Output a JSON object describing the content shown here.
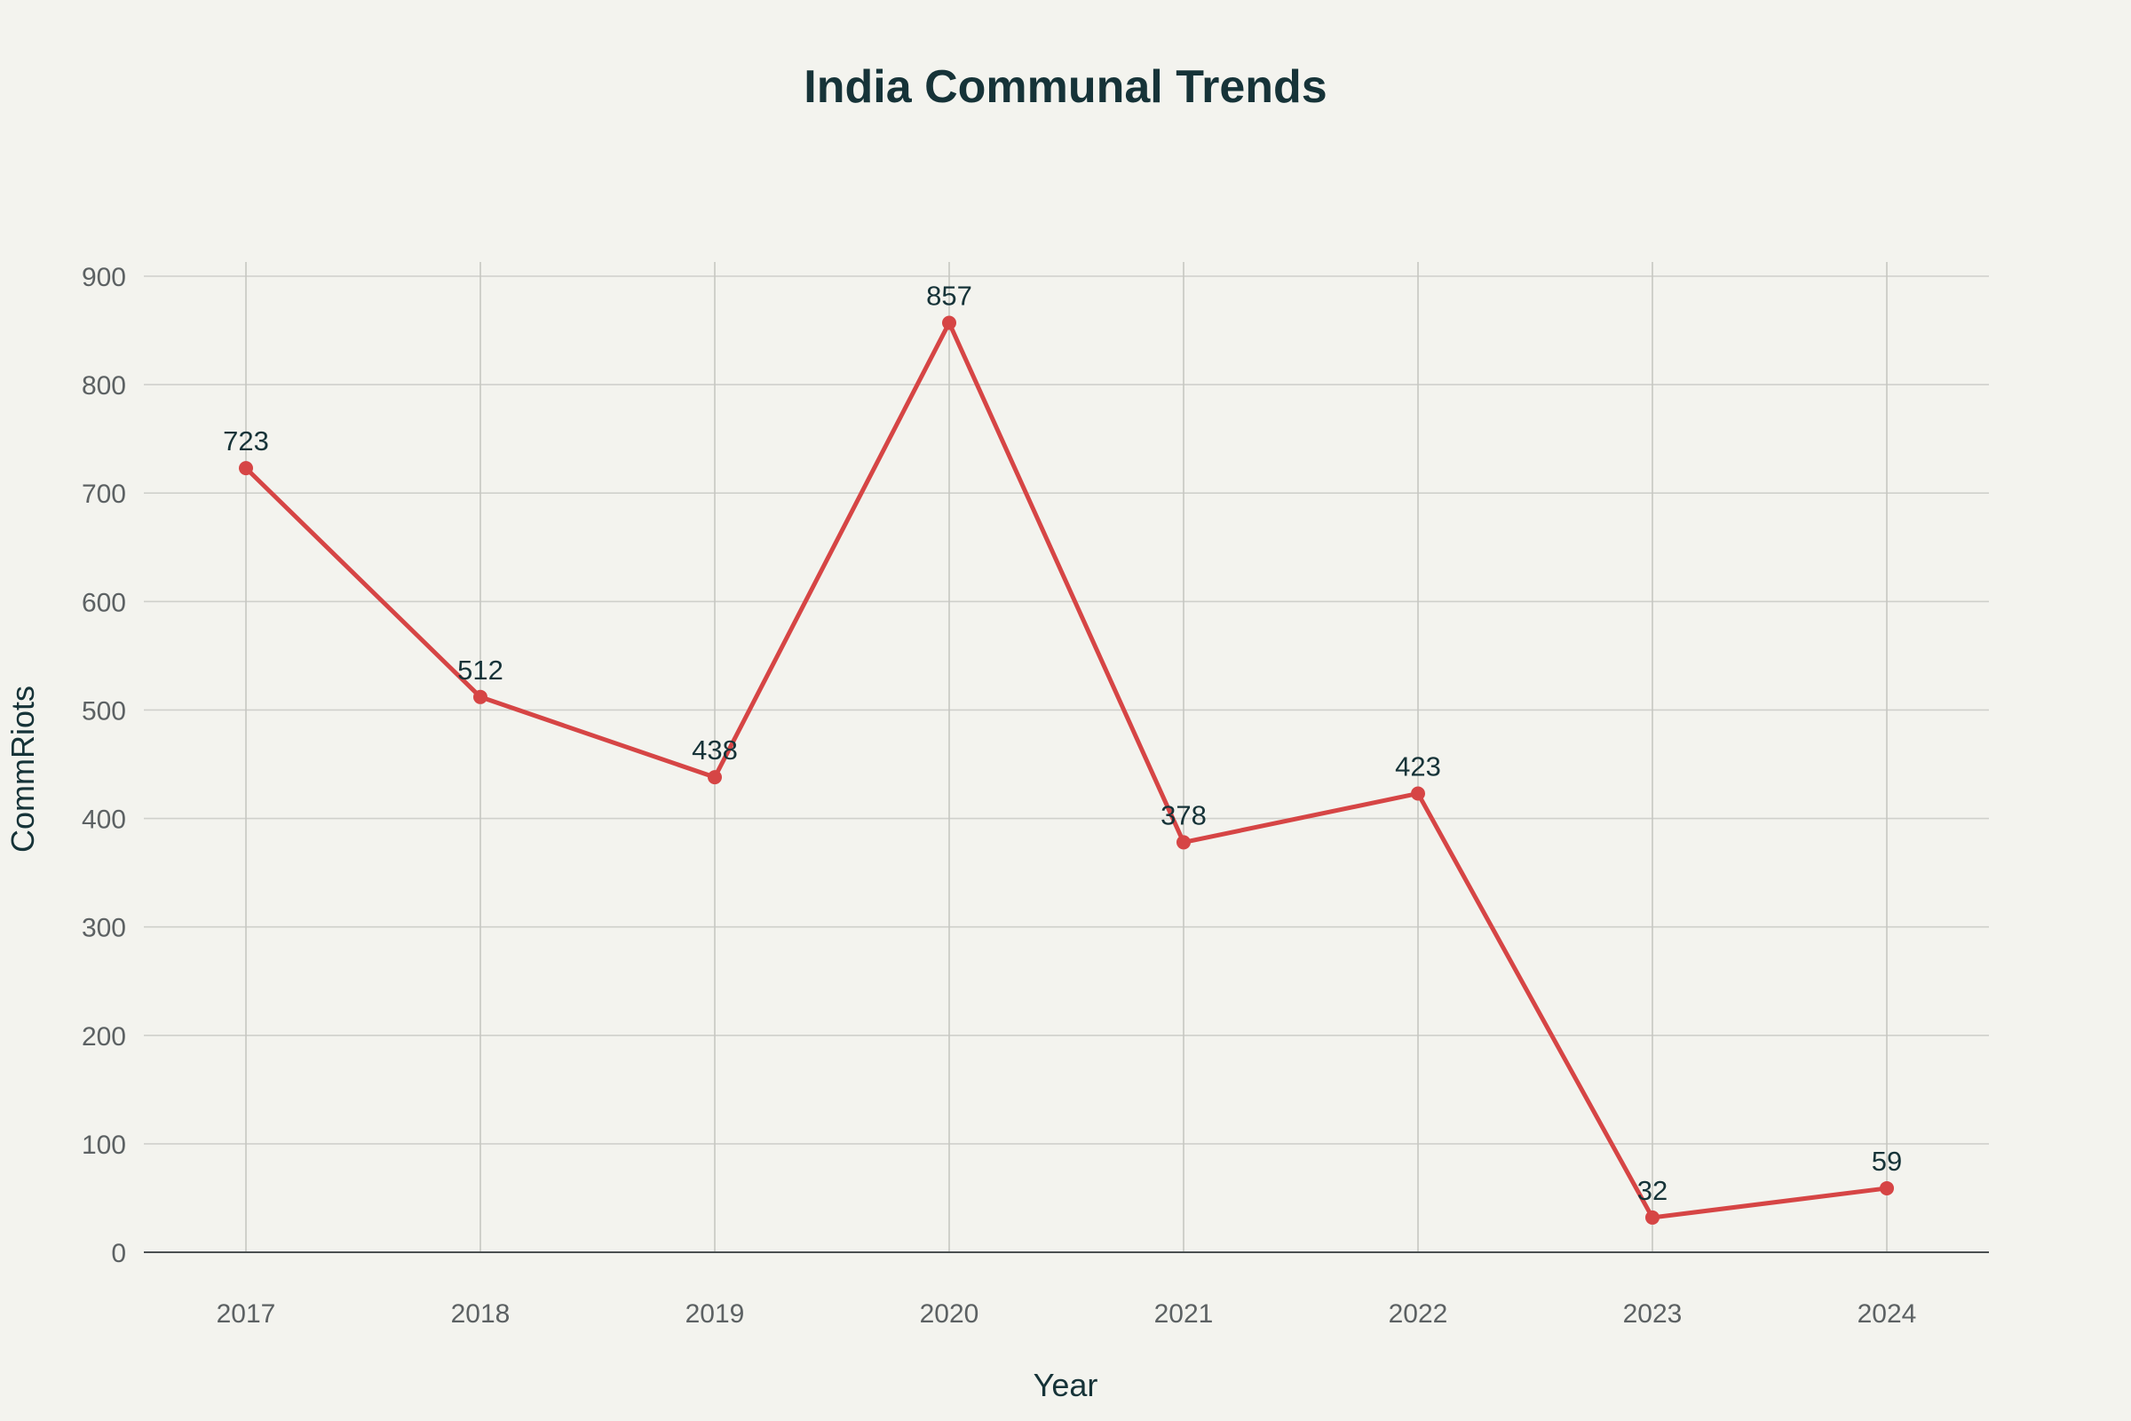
{
  "chart_data": {
    "type": "line",
    "title": "India Communal Trends",
    "xlabel": "Year",
    "ylabel": "CommRiots",
    "categories": [
      "2017",
      "2018",
      "2019",
      "2020",
      "2021",
      "2022",
      "2023",
      "2024"
    ],
    "series": [
      {
        "values": [
          723,
          512,
          438,
          857,
          378,
          423,
          32,
          59
        ],
        "color": "#d64545"
      }
    ],
    "ylim": [
      0,
      900
    ],
    "yticks": [
      0,
      100,
      200,
      300,
      400,
      500,
      600,
      700,
      800,
      900
    ],
    "data_labels": true,
    "grid": true,
    "legend": "none"
  }
}
